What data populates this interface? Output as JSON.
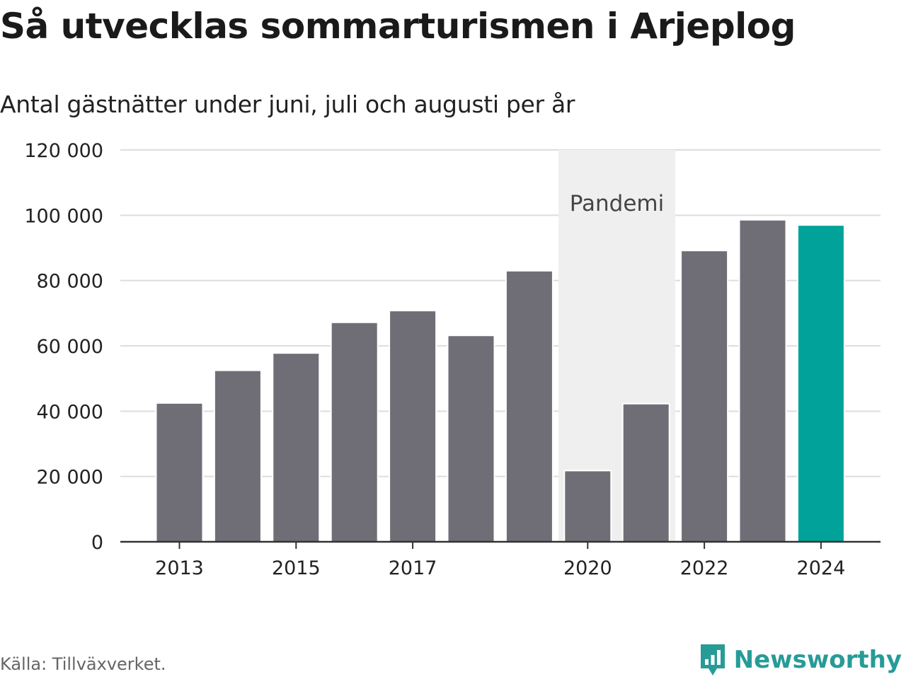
{
  "header": {
    "title": "Så utvecklas sommarturismen i Arjeplog",
    "subtitle": "Antal gästnätter under juni, juli och augusti per år"
  },
  "footer": {
    "source": "Källa: Tillväxverket.",
    "brand": "Newsworthy",
    "brand_icon": "bar-chart-speech-bubble-icon"
  },
  "colors": {
    "bar": "#6f6e76",
    "highlight": "#00a29a",
    "shade": "#efefef",
    "grid": "#dddddd",
    "axis": "#333333",
    "brand": "#279b97"
  },
  "chart_data": {
    "type": "bar",
    "title": "Så utvecklas sommarturismen i Arjeplog",
    "subtitle": "Antal gästnätter under juni, juli och augusti per år",
    "categories": [
      2013,
      2014,
      2015,
      2016,
      2017,
      2018,
      2019,
      2020,
      2021,
      2022,
      2023,
      2024
    ],
    "values": [
      42500,
      52500,
      57800,
      67200,
      70800,
      63200,
      83000,
      21800,
      42300,
      89200,
      98600,
      97000
    ],
    "highlight_category": 2024,
    "x_tick_labels": [
      "2013",
      "2015",
      "2017",
      "2020",
      "2022",
      "2024"
    ],
    "y_ticks": [
      0,
      20000,
      40000,
      60000,
      80000,
      100000,
      120000
    ],
    "y_tick_labels": [
      "0",
      "20 000",
      "40 000",
      "60 000",
      "80 000",
      "100 000",
      "120 000"
    ],
    "ylim": [
      0,
      120000
    ],
    "grid": true,
    "annotations": [
      {
        "type": "shaded-region",
        "label": "Pandemi",
        "from": 2020,
        "to": 2021
      }
    ],
    "source": "Källa: Tillväxverket."
  }
}
